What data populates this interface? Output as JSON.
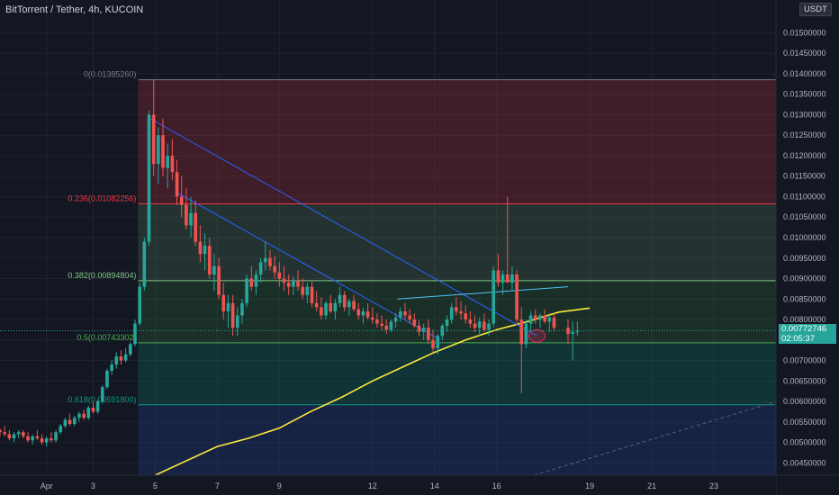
{
  "header": {
    "title": "BitTorrent / Tether, 4h, KUCOIN",
    "currency": "USDT"
  },
  "price_badge": {
    "price": "0.00772746",
    "countdown": "02:05:37"
  },
  "chart_data": {
    "type": "candlestick",
    "title": "BitTorrent / Tether, 4h, KUCOIN",
    "ylim": [
      0.0042,
      0.0158
    ],
    "y_ticks": [
      "0.01500000",
      "0.01450000",
      "0.01400000",
      "0.01350000",
      "0.01300000",
      "0.01250000",
      "0.01200000",
      "0.01150000",
      "0.01100000",
      "0.01050000",
      "0.01000000",
      "0.00950000",
      "0.00900000",
      "0.00850000",
      "0.00800000",
      "0.00750000",
      "0.00700000",
      "0.00650000",
      "0.00600000",
      "0.00550000",
      "0.00500000",
      "0.00450000"
    ],
    "x_ticks": [
      {
        "label": "Apr",
        "x": 1.5
      },
      {
        "label": "3",
        "x": 3
      },
      {
        "label": "5",
        "x": 5
      },
      {
        "label": "7",
        "x": 7
      },
      {
        "label": "9",
        "x": 9
      },
      {
        "label": "12",
        "x": 12
      },
      {
        "label": "14",
        "x": 14
      },
      {
        "label": "16",
        "x": 16
      },
      {
        "label": "19",
        "x": 19
      },
      {
        "label": "21",
        "x": 21
      },
      {
        "label": "23",
        "x": 23
      }
    ],
    "xlim": [
      0.0,
      25.0
    ],
    "fib_levels": [
      {
        "label": "0(0.01385260)",
        "price": 0.0138526,
        "color": "#787b86"
      },
      {
        "label": "0.236(0.01082256)",
        "price": 0.01082256,
        "color": "#f23645"
      },
      {
        "label": "0.382(0.00894804)",
        "price": 0.00894804,
        "color": "#81c784"
      },
      {
        "label": "0.5(0.00743302)",
        "price": 0.00743302,
        "color": "#4caf50"
      },
      {
        "label": "0.618(0.00591800)",
        "price": 0.005918,
        "color": "#089981"
      }
    ],
    "fib_start_x": 4.45,
    "fib_zones": [
      {
        "top": 0.0138526,
        "bottom": 0.01082256,
        "color": "rgba(242,54,69,0.20)"
      },
      {
        "top": 0.01082256,
        "bottom": 0.00894804,
        "color": "rgba(129,199,132,0.16)"
      },
      {
        "top": 0.00894804,
        "bottom": 0.00743302,
        "color": "rgba(76,175,80,0.16)"
      },
      {
        "top": 0.00743302,
        "bottom": 0.005918,
        "color": "rgba(8,153,129,0.22)"
      },
      {
        "top": 0.005918,
        "bottom": 0.0042,
        "color": "rgba(41,98,255,0.16)"
      }
    ],
    "candles": [
      [
        0.0,
        0.0053,
        0.00535,
        0.00515,
        0.00525
      ],
      [
        0.15,
        0.00525,
        0.0054,
        0.00515,
        0.0052
      ],
      [
        0.3,
        0.0052,
        0.0053,
        0.00505,
        0.0051
      ],
      [
        0.45,
        0.0051,
        0.00525,
        0.005,
        0.0052
      ],
      [
        0.6,
        0.0052,
        0.0053,
        0.0051,
        0.00525
      ],
      [
        0.75,
        0.00525,
        0.0053,
        0.0051,
        0.00515
      ],
      [
        0.9,
        0.00515,
        0.00525,
        0.005,
        0.00505
      ],
      [
        1.05,
        0.00505,
        0.0052,
        0.00495,
        0.00515
      ],
      [
        1.2,
        0.00515,
        0.0053,
        0.00505,
        0.0051
      ],
      [
        1.35,
        0.0051,
        0.0052,
        0.00495,
        0.005
      ],
      [
        1.5,
        0.005,
        0.00515,
        0.0049,
        0.0051
      ],
      [
        1.65,
        0.0051,
        0.00525,
        0.005,
        0.00505
      ],
      [
        1.8,
        0.00505,
        0.0053,
        0.005,
        0.00525
      ],
      [
        1.95,
        0.00525,
        0.00545,
        0.0052,
        0.0054
      ],
      [
        2.1,
        0.0054,
        0.0056,
        0.00535,
        0.00555
      ],
      [
        2.25,
        0.00555,
        0.0057,
        0.0054,
        0.00545
      ],
      [
        2.4,
        0.00545,
        0.00565,
        0.0054,
        0.0056
      ],
      [
        2.55,
        0.0056,
        0.00575,
        0.0055,
        0.0057
      ],
      [
        2.7,
        0.0057,
        0.0058,
        0.00555,
        0.0056
      ],
      [
        2.85,
        0.0056,
        0.0059,
        0.00555,
        0.00585
      ],
      [
        3.0,
        0.00585,
        0.006,
        0.0057,
        0.00575
      ],
      [
        3.15,
        0.00575,
        0.00605,
        0.0057,
        0.006
      ],
      [
        3.3,
        0.006,
        0.0064,
        0.00595,
        0.00635
      ],
      [
        3.45,
        0.00635,
        0.0068,
        0.0063,
        0.00675
      ],
      [
        3.6,
        0.00675,
        0.007,
        0.00665,
        0.0069
      ],
      [
        3.75,
        0.0069,
        0.0072,
        0.0068,
        0.0071
      ],
      [
        3.9,
        0.0071,
        0.00725,
        0.0069,
        0.007
      ],
      [
        4.05,
        0.007,
        0.0073,
        0.00695,
        0.00715
      ],
      [
        4.2,
        0.00715,
        0.00745,
        0.0071,
        0.0074
      ],
      [
        4.35,
        0.0074,
        0.008,
        0.00735,
        0.0079
      ],
      [
        4.5,
        0.0079,
        0.0089,
        0.00785,
        0.0088
      ],
      [
        4.65,
        0.0088,
        0.01,
        0.0087,
        0.0099
      ],
      [
        4.8,
        0.0099,
        0.0131,
        0.0098,
        0.013
      ],
      [
        4.95,
        0.013,
        0.01385,
        0.0115,
        0.0118
      ],
      [
        5.1,
        0.0118,
        0.0127,
        0.0113,
        0.0125
      ],
      [
        5.25,
        0.0125,
        0.0129,
        0.0115,
        0.0117
      ],
      [
        5.4,
        0.0117,
        0.0123,
        0.0112,
        0.012
      ],
      [
        5.55,
        0.012,
        0.0124,
        0.0114,
        0.0116
      ],
      [
        5.7,
        0.0116,
        0.0119,
        0.0108,
        0.011
      ],
      [
        5.85,
        0.011,
        0.0115,
        0.0105,
        0.0108
      ],
      [
        6.0,
        0.0108,
        0.0112,
        0.0102,
        0.0103
      ],
      [
        6.15,
        0.0103,
        0.011,
        0.01,
        0.0106
      ],
      [
        6.3,
        0.0106,
        0.0109,
        0.0098,
        0.0099
      ],
      [
        6.45,
        0.0099,
        0.0103,
        0.0094,
        0.0096
      ],
      [
        6.6,
        0.0096,
        0.0101,
        0.0092,
        0.0098
      ],
      [
        6.75,
        0.0098,
        0.01,
        0.009,
        0.0091
      ],
      [
        6.9,
        0.0091,
        0.0096,
        0.0087,
        0.0093
      ],
      [
        7.05,
        0.0093,
        0.0095,
        0.0085,
        0.0086
      ],
      [
        7.2,
        0.0086,
        0.0089,
        0.008,
        0.0082
      ],
      [
        7.35,
        0.0082,
        0.0086,
        0.0078,
        0.0084
      ],
      [
        7.5,
        0.0084,
        0.0086,
        0.0076,
        0.0078
      ],
      [
        7.65,
        0.0078,
        0.0083,
        0.0076,
        0.0081
      ],
      [
        7.8,
        0.0081,
        0.0085,
        0.0079,
        0.0084
      ],
      [
        7.95,
        0.0084,
        0.0091,
        0.0083,
        0.009
      ],
      [
        8.1,
        0.009,
        0.0093,
        0.0087,
        0.0088
      ],
      [
        8.25,
        0.0088,
        0.0092,
        0.0086,
        0.0091
      ],
      [
        8.4,
        0.0091,
        0.0095,
        0.0089,
        0.0094
      ],
      [
        8.55,
        0.0094,
        0.0099,
        0.0092,
        0.0095
      ],
      [
        8.7,
        0.0095,
        0.0097,
        0.0092,
        0.0093
      ],
      [
        8.85,
        0.0093,
        0.00955,
        0.009,
        0.00915
      ],
      [
        9.0,
        0.00915,
        0.0094,
        0.0088,
        0.009
      ],
      [
        9.15,
        0.009,
        0.0093,
        0.0087,
        0.0089
      ],
      [
        9.3,
        0.0089,
        0.0091,
        0.0086,
        0.0088
      ],
      [
        9.45,
        0.0088,
        0.00905,
        0.0086,
        0.00895
      ],
      [
        9.6,
        0.00895,
        0.0092,
        0.0087,
        0.0088
      ],
      [
        9.75,
        0.0088,
        0.009,
        0.0085,
        0.0086
      ],
      [
        9.9,
        0.0086,
        0.0089,
        0.0084,
        0.0088
      ],
      [
        10.05,
        0.0088,
        0.00895,
        0.0083,
        0.0084
      ],
      [
        10.2,
        0.0084,
        0.0087,
        0.0082,
        0.0083
      ],
      [
        10.35,
        0.0083,
        0.00855,
        0.008,
        0.0081
      ],
      [
        10.5,
        0.0081,
        0.00845,
        0.008,
        0.0084
      ],
      [
        10.65,
        0.0084,
        0.0086,
        0.00815,
        0.0082
      ],
      [
        10.8,
        0.0082,
        0.0085,
        0.008,
        0.0084
      ],
      [
        10.95,
        0.0084,
        0.0088,
        0.0083,
        0.0086
      ],
      [
        11.1,
        0.0086,
        0.0087,
        0.0082,
        0.0083
      ],
      [
        11.25,
        0.0083,
        0.0085,
        0.0081,
        0.00845
      ],
      [
        11.4,
        0.00845,
        0.0086,
        0.0082,
        0.00825
      ],
      [
        11.55,
        0.00825,
        0.0084,
        0.008,
        0.0081
      ],
      [
        11.7,
        0.0081,
        0.0083,
        0.0079,
        0.0082
      ],
      [
        11.85,
        0.0082,
        0.0084,
        0.008,
        0.00805
      ],
      [
        12.0,
        0.00805,
        0.0083,
        0.0079,
        0.008
      ],
      [
        12.15,
        0.008,
        0.00815,
        0.0078,
        0.0079
      ],
      [
        12.3,
        0.0079,
        0.0081,
        0.00775,
        0.00785
      ],
      [
        12.45,
        0.00785,
        0.008,
        0.00765,
        0.00775
      ],
      [
        12.6,
        0.00775,
        0.008,
        0.0077,
        0.00795
      ],
      [
        12.75,
        0.00795,
        0.00815,
        0.0078,
        0.00805
      ],
      [
        12.9,
        0.00805,
        0.0083,
        0.00795,
        0.0082
      ],
      [
        13.05,
        0.0082,
        0.0084,
        0.008,
        0.0081
      ],
      [
        13.2,
        0.0081,
        0.00825,
        0.0079,
        0.008
      ],
      [
        13.35,
        0.008,
        0.00815,
        0.0078,
        0.00785
      ],
      [
        13.5,
        0.00785,
        0.008,
        0.0076,
        0.0077
      ],
      [
        13.65,
        0.0077,
        0.0079,
        0.0075,
        0.0078
      ],
      [
        13.8,
        0.0078,
        0.008,
        0.0074,
        0.0075
      ],
      [
        13.95,
        0.0075,
        0.00775,
        0.0072,
        0.0073
      ],
      [
        14.1,
        0.0073,
        0.00765,
        0.00715,
        0.0076
      ],
      [
        14.25,
        0.0076,
        0.0079,
        0.0075,
        0.00785
      ],
      [
        14.4,
        0.00785,
        0.0081,
        0.0077,
        0.008
      ],
      [
        14.55,
        0.008,
        0.0084,
        0.0079,
        0.0083
      ],
      [
        14.7,
        0.0083,
        0.00855,
        0.0081,
        0.0082
      ],
      [
        14.85,
        0.0082,
        0.00845,
        0.008,
        0.00815
      ],
      [
        15.0,
        0.00815,
        0.00835,
        0.0079,
        0.008
      ],
      [
        15.15,
        0.008,
        0.0082,
        0.0078,
        0.0079
      ],
      [
        15.3,
        0.0079,
        0.0081,
        0.0077,
        0.0078
      ],
      [
        15.45,
        0.0078,
        0.00805,
        0.0076,
        0.00795
      ],
      [
        15.6,
        0.00795,
        0.00815,
        0.0077,
        0.00775
      ],
      [
        15.75,
        0.00775,
        0.008,
        0.0076,
        0.0079
      ],
      [
        15.9,
        0.0079,
        0.0093,
        0.0078,
        0.0092
      ],
      [
        16.05,
        0.0092,
        0.0096,
        0.0088,
        0.0089
      ],
      [
        16.2,
        0.0089,
        0.0092,
        0.0086,
        0.0091
      ],
      [
        16.35,
        0.0091,
        0.011,
        0.0089,
        0.0089
      ],
      [
        16.5,
        0.0089,
        0.0093,
        0.0087,
        0.0091
      ],
      [
        16.65,
        0.0091,
        0.0092,
        0.0079,
        0.008
      ],
      [
        16.8,
        0.008,
        0.0083,
        0.0062,
        0.0074
      ],
      [
        16.95,
        0.0074,
        0.008,
        0.0073,
        0.0079
      ],
      [
        17.1,
        0.0079,
        0.0082,
        0.0077,
        0.0081
      ],
      [
        17.25,
        0.0081,
        0.00825,
        0.0079,
        0.008
      ],
      [
        17.4,
        0.008,
        0.00815,
        0.0078,
        0.0081
      ],
      [
        17.55,
        0.0081,
        0.00825,
        0.0079,
        0.00795
      ],
      [
        17.7,
        0.00795,
        0.00815,
        0.0077,
        0.00805
      ],
      [
        17.85,
        0.00805,
        0.00815,
        0.0077,
        0.0078
      ],
      [
        18.3,
        0.0078,
        0.008,
        0.0074,
        0.00765
      ],
      [
        18.45,
        0.00765,
        0.00795,
        0.007,
        0.0077
      ],
      [
        18.6,
        0.0077,
        0.00795,
        0.0076,
        0.00773
      ]
    ],
    "moving_average": {
      "color": "#ffeb3b",
      "points": [
        [
          5.0,
          0.0042
        ],
        [
          6.0,
          0.00455
        ],
        [
          7.0,
          0.0049
        ],
        [
          8.0,
          0.0051
        ],
        [
          9.0,
          0.00535
        ],
        [
          10.0,
          0.00575
        ],
        [
          11.0,
          0.0061
        ],
        [
          12.0,
          0.0065
        ],
        [
          13.0,
          0.00685
        ],
        [
          14.0,
          0.0072
        ],
        [
          15.0,
          0.0075
        ],
        [
          16.0,
          0.00775
        ],
        [
          17.0,
          0.00795
        ],
        [
          18.0,
          0.00818
        ],
        [
          19.0,
          0.00828
        ]
      ]
    },
    "trendlines": [
      {
        "from": [
          4.85,
          0.0129
        ],
        "to": [
          17.3,
          0.0076
        ],
        "color": "#2962ff"
      },
      {
        "from": [
          5.7,
          0.0111
        ],
        "to": [
          14.2,
          0.0075
        ],
        "color": "#2962ff"
      },
      {
        "from": [
          12.8,
          0.0085
        ],
        "to": [
          18.3,
          0.0088
        ],
        "color": "#4fc3f7"
      }
    ],
    "highlight_ellipse": {
      "cx": 17.3,
      "cy": 0.0076,
      "color": "#e91e63"
    },
    "future_dashed": {
      "from": [
        17.2,
        0.0042
      ],
      "to": [
        25.0,
        0.006
      ],
      "color": "#5d606b"
    },
    "last_price": 0.00772746
  }
}
